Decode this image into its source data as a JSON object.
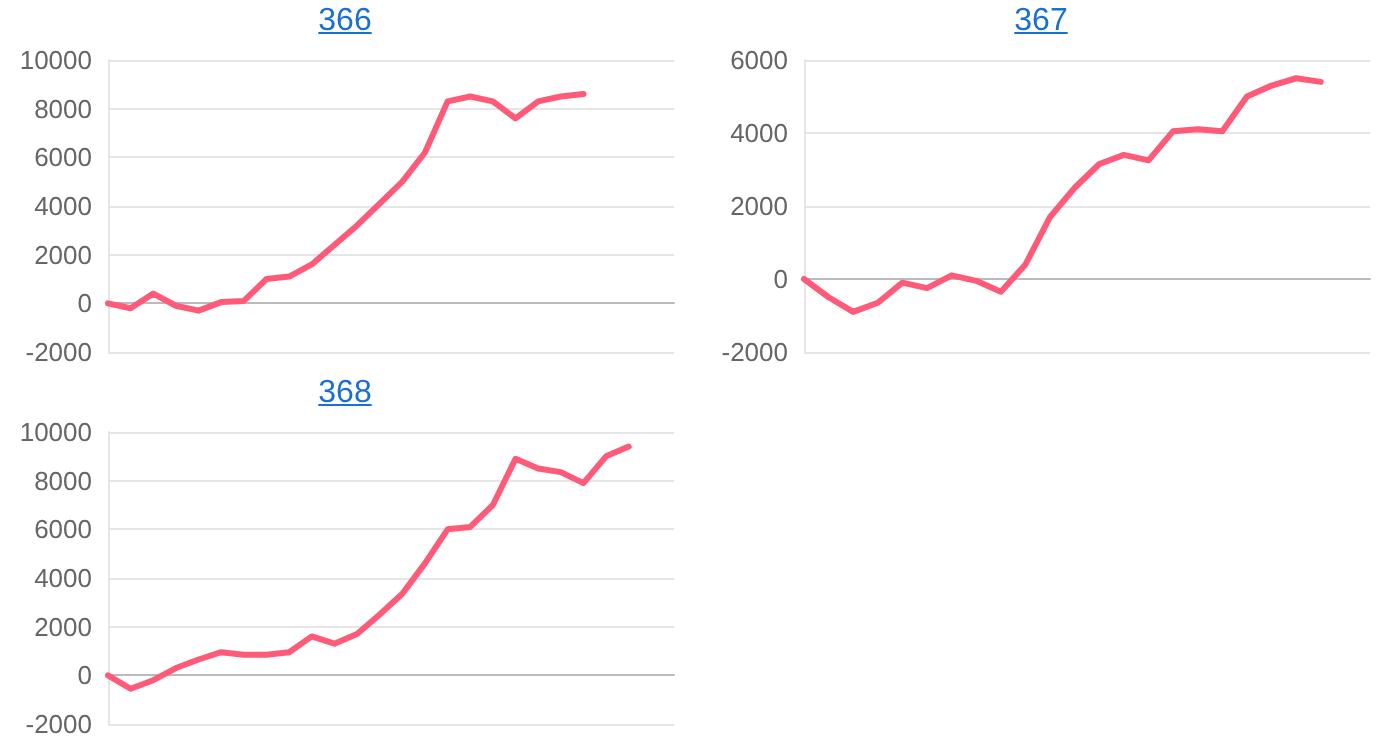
{
  "chart_data": [
    {
      "type": "line",
      "title": "366",
      "categories": [
        null,
        null,
        null,
        null,
        null,
        null,
        null,
        null,
        null,
        null,
        null,
        null,
        null,
        null,
        null,
        null,
        null,
        null,
        null,
        null,
        null,
        null,
        null,
        null,
        null,
        null
      ],
      "series": [
        {
          "color": "#ff5a78",
          "values": [
            0,
            -200,
            400,
            -100,
            -300,
            50,
            100,
            1000,
            1100,
            1600,
            2400,
            3200,
            4100,
            5000,
            6200,
            8300,
            8500,
            8300,
            7600,
            8300,
            8500,
            8600,
            null,
            null,
            null,
            null
          ]
        }
      ],
      "ylim": [
        -2000,
        10000
      ],
      "yticks": [
        -2000,
        0,
        2000,
        4000,
        6000,
        8000,
        10000
      ],
      "grid": "y",
      "tick_labels": "y",
      "marker": "none",
      "line_style": "solid"
    },
    {
      "type": "line",
      "title": "367",
      "categories": [
        null,
        null,
        null,
        null,
        null,
        null,
        null,
        null,
        null,
        null,
        null,
        null,
        null,
        null,
        null,
        null,
        null,
        null,
        null,
        null,
        null,
        null,
        null,
        null
      ],
      "series": [
        {
          "color": "#ff5a78",
          "values": [
            0,
            -500,
            -900,
            -650,
            -100,
            -250,
            100,
            -50,
            -350,
            400,
            1700,
            2500,
            3150,
            3400,
            3250,
            4050,
            4100,
            4050,
            5000,
            5300,
            5500,
            5400,
            null,
            null
          ]
        }
      ],
      "ylim": [
        -2000,
        6000
      ],
      "yticks": [
        -2000,
        0,
        2000,
        4000,
        6000
      ],
      "grid": "y",
      "tick_labels": "y",
      "marker": "none",
      "line_style": "solid"
    },
    {
      "type": "line",
      "title": "368",
      "categories": [
        null,
        null,
        null,
        null,
        null,
        null,
        null,
        null,
        null,
        null,
        null,
        null,
        null,
        null,
        null,
        null,
        null,
        null,
        null,
        null,
        null,
        null,
        null,
        null,
        null,
        null
      ],
      "series": [
        {
          "color": "#ff5a78",
          "values": [
            0,
            -550,
            -200,
            300,
            650,
            950,
            850,
            850,
            950,
            1600,
            1300,
            1700,
            2500,
            3350,
            4600,
            6000,
            6100,
            7000,
            8900,
            8500,
            8350,
            7900,
            9000,
            9400,
            null,
            null
          ]
        }
      ],
      "ylim": [
        -2000,
        10000
      ],
      "yticks": [
        -2000,
        0,
        2000,
        4000,
        6000,
        8000,
        10000
      ],
      "grid": "y",
      "tick_labels": "y",
      "marker": "none",
      "line_style": "solid"
    }
  ]
}
